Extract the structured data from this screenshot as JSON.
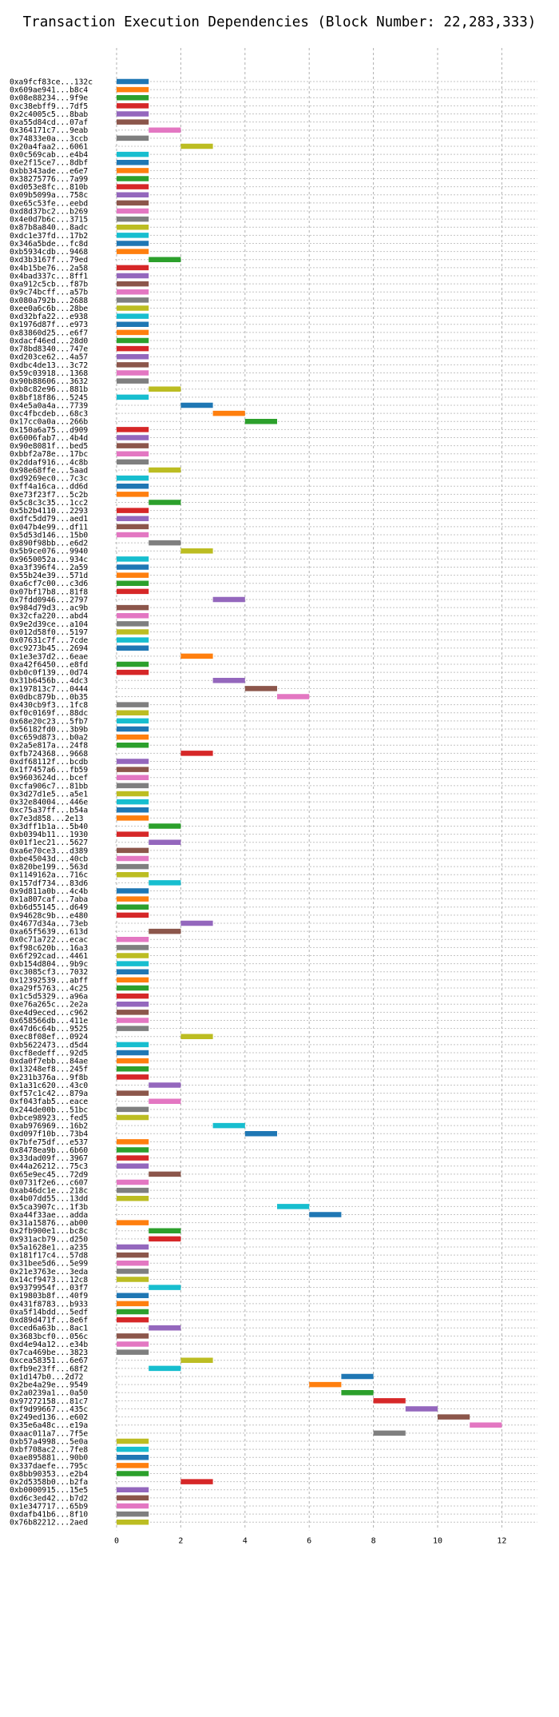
{
  "chart_data": {
    "type": "gantt",
    "title": "Transaction Execution Dependencies (Block Number: 22,283,333)",
    "xlim": [
      0,
      13
    ],
    "xticks": [
      0,
      2,
      4,
      6,
      8,
      10,
      12
    ],
    "grid": true,
    "palette": [
      "#1f77b4",
      "#ff7f0e",
      "#2ca02c",
      "#d62728",
      "#9467bd",
      "#8c564b",
      "#e377c2",
      "#7f7f7f",
      "#bcbd22",
      "#17becf"
    ],
    "transactions": [
      {
        "label": "0xa9fcf83ce...132c",
        "start": 0,
        "end": 1
      },
      {
        "label": "0x609ae941...b8c4",
        "start": 0,
        "end": 1
      },
      {
        "label": "0x08e88234...9f9e",
        "start": 0,
        "end": 1
      },
      {
        "label": "0xc38ebff9...7df5",
        "start": 0,
        "end": 1
      },
      {
        "label": "0x2c4005c5...8bab",
        "start": 0,
        "end": 1
      },
      {
        "label": "0xa55d84cd...07af",
        "start": 0,
        "end": 1
      },
      {
        "label": "0x364171c7...9eab",
        "start": 1,
        "end": 2
      },
      {
        "label": "0x74833e0a...3ccb",
        "start": 0,
        "end": 1
      },
      {
        "label": "0x20a4faa2...6061",
        "start": 2,
        "end": 3
      },
      {
        "label": "0x0c569cab...e4b4",
        "start": 0,
        "end": 1
      },
      {
        "label": "0xe2f15ce7...8dbf",
        "start": 0,
        "end": 1
      },
      {
        "label": "0xbb343ade...e6e7",
        "start": 0,
        "end": 1
      },
      {
        "label": "0x38275776...7a99",
        "start": 0,
        "end": 1
      },
      {
        "label": "0xd053e8fc...810b",
        "start": 0,
        "end": 1
      },
      {
        "label": "0x09b5099a...758c",
        "start": 0,
        "end": 1
      },
      {
        "label": "0xe65c53fe...eebd",
        "start": 0,
        "end": 1
      },
      {
        "label": "0xd8d37bc2...b269",
        "start": 0,
        "end": 1
      },
      {
        "label": "0x4e0d7b6c...3715",
        "start": 0,
        "end": 1
      },
      {
        "label": "0x87b8a840...8adc",
        "start": 0,
        "end": 1
      },
      {
        "label": "0xdc1e37fd...17b2",
        "start": 0,
        "end": 1
      },
      {
        "label": "0x346a5bde...fc8d",
        "start": 0,
        "end": 1
      },
      {
        "label": "0xb5934cdb...9468",
        "start": 0,
        "end": 1
      },
      {
        "label": "0xd3b3167f...79ed",
        "start": 1,
        "end": 2
      },
      {
        "label": "0x4b15be76...2a58",
        "start": 0,
        "end": 1
      },
      {
        "label": "0x4bad337c...8ff1",
        "start": 0,
        "end": 1
      },
      {
        "label": "0xa912c5cb...f87b",
        "start": 0,
        "end": 1
      },
      {
        "label": "0x9c74bcff...a57b",
        "start": 0,
        "end": 1
      },
      {
        "label": "0x080a792b...2688",
        "start": 0,
        "end": 1
      },
      {
        "label": "0xee0a6c6b...28be",
        "start": 0,
        "end": 1
      },
      {
        "label": "0xd32bfa22...e938",
        "start": 0,
        "end": 1
      },
      {
        "label": "0x1976d87f...e973",
        "start": 0,
        "end": 1
      },
      {
        "label": "0x83860d25...e6f7",
        "start": 0,
        "end": 1
      },
      {
        "label": "0xdacf46ed...28d0",
        "start": 0,
        "end": 1
      },
      {
        "label": "0x78bd8340...747e",
        "start": 0,
        "end": 1
      },
      {
        "label": "0xd203ce62...4a57",
        "start": 0,
        "end": 1
      },
      {
        "label": "0xdbc4de13...3c72",
        "start": 0,
        "end": 1
      },
      {
        "label": "0x59c03918...1368",
        "start": 0,
        "end": 1
      },
      {
        "label": "0x90b88606...3632",
        "start": 0,
        "end": 1
      },
      {
        "label": "0xb8c82e96...881b",
        "start": 1,
        "end": 2
      },
      {
        "label": "0x8bf18f86...5245",
        "start": 0,
        "end": 1
      },
      {
        "label": "0x4e5a0a4a...7739",
        "start": 2,
        "end": 3
      },
      {
        "label": "0xc4fbcdeb...68c3",
        "start": 3,
        "end": 4
      },
      {
        "label": "0x17cc0a0a...266b",
        "start": 4,
        "end": 5
      },
      {
        "label": "0x150a6a75...d909",
        "start": 0,
        "end": 1
      },
      {
        "label": "0x6006fab7...4b4d",
        "start": 0,
        "end": 1
      },
      {
        "label": "0x90e8081f...bed5",
        "start": 0,
        "end": 1
      },
      {
        "label": "0xbbf2a78e...17bc",
        "start": 0,
        "end": 1
      },
      {
        "label": "0x2ddaf916...4c8b",
        "start": 0,
        "end": 1
      },
      {
        "label": "0x98e68ffe...5aad",
        "start": 1,
        "end": 2
      },
      {
        "label": "0xd9269ec0...7c3c",
        "start": 0,
        "end": 1
      },
      {
        "label": "0xff4a16ca...dd6d",
        "start": 0,
        "end": 1
      },
      {
        "label": "0xe73f23f7...5c2b",
        "start": 0,
        "end": 1
      },
      {
        "label": "0x5c8c3c35...1cc2",
        "start": 1,
        "end": 2
      },
      {
        "label": "0x5b2b4110...2293",
        "start": 0,
        "end": 1
      },
      {
        "label": "0xdfc5dd79...aed1",
        "start": 0,
        "end": 1
      },
      {
        "label": "0x047b4e99...df11",
        "start": 0,
        "end": 1
      },
      {
        "label": "0x5d53d146...15b0",
        "start": 0,
        "end": 1
      },
      {
        "label": "0x890f98bb...e6d2",
        "start": 1,
        "end": 2
      },
      {
        "label": "0x5b9ce076...9940",
        "start": 2,
        "end": 3
      },
      {
        "label": "0x9650052a...934c",
        "start": 0,
        "end": 1
      },
      {
        "label": "0xa3f396f4...2a59",
        "start": 0,
        "end": 1
      },
      {
        "label": "0x55b24e39...571d",
        "start": 0,
        "end": 1
      },
      {
        "label": "0xa6cf7c00...c3d6",
        "start": 0,
        "end": 1
      },
      {
        "label": "0x07bf17b8...81f8",
        "start": 0,
        "end": 1
      },
      {
        "label": "0x7fdd0946...2797",
        "start": 3,
        "end": 4
      },
      {
        "label": "0x984d79d3...ac9b",
        "start": 0,
        "end": 1
      },
      {
        "label": "0x32cfa220...abd4",
        "start": 0,
        "end": 1
      },
      {
        "label": "0x9e2d39ce...a104",
        "start": 0,
        "end": 1
      },
      {
        "label": "0x012d58f0...5197",
        "start": 0,
        "end": 1
      },
      {
        "label": "0x07631c7f...7cde",
        "start": 0,
        "end": 1
      },
      {
        "label": "0xc9273b45...2694",
        "start": 0,
        "end": 1
      },
      {
        "label": "0x1e3e37d2...6eae",
        "start": 2,
        "end": 3
      },
      {
        "label": "0xa42f6450...e8fd",
        "start": 0,
        "end": 1
      },
      {
        "label": "0xb0c0f139...0d74",
        "start": 0,
        "end": 1
      },
      {
        "label": "0x31b6456b...4dc3",
        "start": 3,
        "end": 4
      },
      {
        "label": "0x197813c7...0444",
        "start": 4,
        "end": 5
      },
      {
        "label": "0x0dbc879b...0b35",
        "start": 5,
        "end": 6
      },
      {
        "label": "0x430cb9f3...1fc8",
        "start": 0,
        "end": 1
      },
      {
        "label": "0xf0c0169f...88dc",
        "start": 0,
        "end": 1
      },
      {
        "label": "0x68e20c23...5fb7",
        "start": 0,
        "end": 1
      },
      {
        "label": "0x56182fd0...3b9b",
        "start": 0,
        "end": 1
      },
      {
        "label": "0xc659d873...b0a2",
        "start": 0,
        "end": 1
      },
      {
        "label": "0x2a5e817a...24f8",
        "start": 0,
        "end": 1
      },
      {
        "label": "0xfb724368...9668",
        "start": 2,
        "end": 3
      },
      {
        "label": "0xdf68112f...bcdb",
        "start": 0,
        "end": 1
      },
      {
        "label": "0x1f7457a6...fb59",
        "start": 0,
        "end": 1
      },
      {
        "label": "0x9603624d...bcef",
        "start": 0,
        "end": 1
      },
      {
        "label": "0xcfa906c7...81bb",
        "start": 0,
        "end": 1
      },
      {
        "label": "0x3d27d1e5...a5e1",
        "start": 0,
        "end": 1
      },
      {
        "label": "0x32e84004...446e",
        "start": 0,
        "end": 1
      },
      {
        "label": "0xc75a37ff...b54a",
        "start": 0,
        "end": 1
      },
      {
        "label": "0x7e3d858...2e13",
        "start": 0,
        "end": 1
      },
      {
        "label": "0x3dff1b1a...5b40",
        "start": 1,
        "end": 2
      },
      {
        "label": "0xb0394b11...1930",
        "start": 0,
        "end": 1
      },
      {
        "label": "0x01f1ec21...5627",
        "start": 1,
        "end": 2
      },
      {
        "label": "0xa6e70ce3...d389",
        "start": 0,
        "end": 1
      },
      {
        "label": "0xbe45043d...40cb",
        "start": 0,
        "end": 1
      },
      {
        "label": "0x820be199...563d",
        "start": 0,
        "end": 1
      },
      {
        "label": "0x1149162a...716c",
        "start": 0,
        "end": 1
      },
      {
        "label": "0x157df734...83d6",
        "start": 1,
        "end": 2
      },
      {
        "label": "0x9d811a0b...4c4b",
        "start": 0,
        "end": 1
      },
      {
        "label": "0x1a807caf...7aba",
        "start": 0,
        "end": 1
      },
      {
        "label": "0xb6d55145...d649",
        "start": 0,
        "end": 1
      },
      {
        "label": "0x94628c9b...e480",
        "start": 0,
        "end": 1
      },
      {
        "label": "0x4677d34a...73eb",
        "start": 2,
        "end": 3
      },
      {
        "label": "0xa65f5639...613d",
        "start": 1,
        "end": 2
      },
      {
        "label": "0x0c71a722...ecac",
        "start": 0,
        "end": 1
      },
      {
        "label": "0xf98c620b...16a3",
        "start": 0,
        "end": 1
      },
      {
        "label": "0x6f292cad...4461",
        "start": 0,
        "end": 1
      },
      {
        "label": "0xb154d804...9b9c",
        "start": 0,
        "end": 1
      },
      {
        "label": "0xc3085cf3...7032",
        "start": 0,
        "end": 1
      },
      {
        "label": "0x12392539...abff",
        "start": 0,
        "end": 1
      },
      {
        "label": "0xa29f5763...4c25",
        "start": 0,
        "end": 1
      },
      {
        "label": "0x1c5d5329...a96a",
        "start": 0,
        "end": 1
      },
      {
        "label": "0xe76a265c...2e2a",
        "start": 0,
        "end": 1
      },
      {
        "label": "0xe4d9eced...c962",
        "start": 0,
        "end": 1
      },
      {
        "label": "0x658566db...411e",
        "start": 0,
        "end": 1
      },
      {
        "label": "0x47d6c64b...9525",
        "start": 0,
        "end": 1
      },
      {
        "label": "0xec8f08ef...0924",
        "start": 2,
        "end": 3
      },
      {
        "label": "0xb5622473...d5d4",
        "start": 0,
        "end": 1
      },
      {
        "label": "0xcf8edeff...92d5",
        "start": 0,
        "end": 1
      },
      {
        "label": "0xda0f7ebb...84ae",
        "start": 0,
        "end": 1
      },
      {
        "label": "0x13248ef8...245f",
        "start": 0,
        "end": 1
      },
      {
        "label": "0x231b376a...9f8b",
        "start": 0,
        "end": 1
      },
      {
        "label": "0x1a31c620...43c0",
        "start": 1,
        "end": 2
      },
      {
        "label": "0xf57c1c42...879a",
        "start": 0,
        "end": 1
      },
      {
        "label": "0xf043fab5...eace",
        "start": 1,
        "end": 2
      },
      {
        "label": "0x244de00b...51bc",
        "start": 0,
        "end": 1
      },
      {
        "label": "0xbce98923...fed5",
        "start": 0,
        "end": 1
      },
      {
        "label": "0xab976969...16b2",
        "start": 3,
        "end": 4
      },
      {
        "label": "0xd097f10b...73b4",
        "start": 4,
        "end": 5
      },
      {
        "label": "0x7bfe75df...e537",
        "start": 0,
        "end": 1
      },
      {
        "label": "0x8478ea9b...6b60",
        "start": 0,
        "end": 1
      },
      {
        "label": "0x33dad09f...3967",
        "start": 0,
        "end": 1
      },
      {
        "label": "0x44a26212...75c3",
        "start": 0,
        "end": 1
      },
      {
        "label": "0x65e9ec45...72d9",
        "start": 1,
        "end": 2
      },
      {
        "label": "0x0731f2e6...c607",
        "start": 0,
        "end": 1
      },
      {
        "label": "0xab46dc1e...218c",
        "start": 0,
        "end": 1
      },
      {
        "label": "0x4b07dd55...13dd",
        "start": 0,
        "end": 1
      },
      {
        "label": "0x5ca3907c...1f3b",
        "start": 5,
        "end": 6
      },
      {
        "label": "0xa44f33ae...adda",
        "start": 6,
        "end": 7
      },
      {
        "label": "0x31a15876...ab00",
        "start": 0,
        "end": 1
      },
      {
        "label": "0x2fb900e1...bc8c",
        "start": 1,
        "end": 2
      },
      {
        "label": "0x931acb79...d250",
        "start": 1,
        "end": 2
      },
      {
        "label": "0x5a1628e1...a235",
        "start": 0,
        "end": 1
      },
      {
        "label": "0x181f17c4...57d8",
        "start": 0,
        "end": 1
      },
      {
        "label": "0x31bee5d6...5e99",
        "start": 0,
        "end": 1
      },
      {
        "label": "0x21e3763e...3eda",
        "start": 0,
        "end": 1
      },
      {
        "label": "0x14cf9473...12c8",
        "start": 0,
        "end": 1
      },
      {
        "label": "0x9379954f...03f7",
        "start": 1,
        "end": 2
      },
      {
        "label": "0x19803b8f...40f9",
        "start": 0,
        "end": 1
      },
      {
        "label": "0x431f8783...b933",
        "start": 0,
        "end": 1
      },
      {
        "label": "0xa5f14bdd...5edf",
        "start": 0,
        "end": 1
      },
      {
        "label": "0xd89d471f...8e6f",
        "start": 0,
        "end": 1
      },
      {
        "label": "0xced6a63b...8ac1",
        "start": 1,
        "end": 2
      },
      {
        "label": "0x3683bcf0...056c",
        "start": 0,
        "end": 1
      },
      {
        "label": "0xd4e94a12...e34b",
        "start": 0,
        "end": 1
      },
      {
        "label": "0x7ca469be...3823",
        "start": 0,
        "end": 1
      },
      {
        "label": "0xcea58351...6e67",
        "start": 2,
        "end": 3
      },
      {
        "label": "0xfb9e23ff...68f2",
        "start": 1,
        "end": 2
      },
      {
        "label": "0x1d147b0...2d72",
        "start": 7,
        "end": 8
      },
      {
        "label": "0x2be4a29e...9549",
        "start": 6,
        "end": 7
      },
      {
        "label": "0x2a0239a1...0a50",
        "start": 7,
        "end": 8
      },
      {
        "label": "0x97272158...81c7",
        "start": 8,
        "end": 9
      },
      {
        "label": "0xf9d99667...435c",
        "start": 9,
        "end": 10
      },
      {
        "label": "0x249ed136...e602",
        "start": 10,
        "end": 11
      },
      {
        "label": "0x35e6a48c...e19a",
        "start": 11,
        "end": 12
      },
      {
        "label": "0xaac011a7...7f5e",
        "start": 8,
        "end": 9
      },
      {
        "label": "0xb57a4998...5e0a",
        "start": 0,
        "end": 1
      },
      {
        "label": "0xbf708ac2...7fe8",
        "start": 0,
        "end": 1
      },
      {
        "label": "0xae895881...90b0",
        "start": 0,
        "end": 1
      },
      {
        "label": "0x337daefe...795c",
        "start": 0,
        "end": 1
      },
      {
        "label": "0x8bb90353...e2b4",
        "start": 0,
        "end": 1
      },
      {
        "label": "0x2d5358b0...b2fa",
        "start": 2,
        "end": 3
      },
      {
        "label": "0xb0000915...15e5",
        "start": 0,
        "end": 1
      },
      {
        "label": "0xd6c3ed42...b7d2",
        "start": 0,
        "end": 1
      },
      {
        "label": "0x1e347717...65b9",
        "start": 0,
        "end": 1
      },
      {
        "label": "0xdafb41b6...8f10",
        "start": 0,
        "end": 1
      },
      {
        "label": "0x76b82212...2aed",
        "start": 0,
        "end": 1
      }
    ]
  }
}
